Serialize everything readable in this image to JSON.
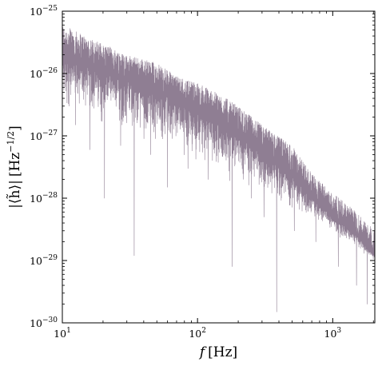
{
  "chart_data": {
    "type": "line",
    "title": "",
    "xlabel": "f [Hz]",
    "ylabel": "|⟨h̃⟩| [Hz^-1/2]",
    "xlabel_parts": {
      "var": "f",
      "unit": "[Hz]"
    },
    "ylabel_parts": {
      "var": "|⟨h̃⟩|",
      "unit_base": "[Hz",
      "unit_exp": "−1/2",
      "unit_close": "]"
    },
    "xscale": "log",
    "yscale": "log",
    "xlim": [
      10,
      2048
    ],
    "ylim": [
      1e-30,
      1e-25
    ],
    "grid": false,
    "legend": "none",
    "color": "#8f7e93",
    "x_ticks": [
      {
        "value": 10,
        "base": "10",
        "exp": "1"
      },
      {
        "value": 100,
        "base": "10",
        "exp": "2"
      },
      {
        "value": 1000,
        "base": "10",
        "exp": "3"
      }
    ],
    "y_ticks": [
      {
        "value": 1e-30,
        "base": "10",
        "exp": "−30"
      },
      {
        "value": 1e-29,
        "base": "10",
        "exp": "−29"
      },
      {
        "value": 1e-28,
        "base": "10",
        "exp": "−28"
      },
      {
        "value": 1e-27,
        "base": "10",
        "exp": "−27"
      },
      {
        "value": 1e-26,
        "base": "10",
        "exp": "−26"
      },
      {
        "value": 1e-25,
        "base": "10",
        "exp": "−25"
      }
    ],
    "series": [
      {
        "upper_envelope": {
          "x": [
            10,
            12,
            15,
            20,
            30,
            50,
            70,
            100,
            150,
            200,
            300,
            500,
            700,
            1000,
            1500,
            2048
          ],
          "y": [
            6e-26,
            5e-26,
            4e-26,
            3e-26,
            2e-26,
            1.5e-26,
            9e-27,
            7e-27,
            4.5e-27,
            3e-27,
            1.5e-27,
            7e-28,
            2.5e-28,
            1.2e-28,
            6e-29,
            3e-29
          ]
        },
        "typical_level": {
          "x": [
            10,
            15,
            20,
            30,
            50,
            100,
            150,
            200,
            300,
            500,
            700,
            1000,
            1500,
            2048
          ],
          "y": [
            1.8e-26,
            1.3e-26,
            1e-26,
            8e-27,
            5e-27,
            2.5e-27,
            1.5e-27,
            1e-27,
            5e-28,
            2.2e-28,
            1e-28,
            5e-29,
            2.5e-29,
            1.2e-29
          ]
        },
        "lower_band": {
          "x": [
            10,
            20,
            50,
            100,
            200,
            500,
            1000,
            2048
          ],
          "y": [
            2e-27,
            1.2e-27,
            6e-28,
            3e-28,
            1.5e-28,
            6e-29,
            2.5e-29,
            1e-29
          ]
        },
        "dips": [
          {
            "x": 12.5,
            "y": 1.5e-27
          },
          {
            "x": 16,
            "y": 6e-28
          },
          {
            "x": 20.5,
            "y": 1e-28
          },
          {
            "x": 27,
            "y": 7e-28
          },
          {
            "x": 34,
            "y": 1.2e-29
          },
          {
            "x": 45,
            "y": 5e-28
          },
          {
            "x": 60,
            "y": 1.5e-28
          },
          {
            "x": 85,
            "y": 3e-28
          },
          {
            "x": 120,
            "y": 2e-28
          },
          {
            "x": 180,
            "y": 8e-30
          },
          {
            "x": 250,
            "y": 1e-28
          },
          {
            "x": 310,
            "y": 5e-29
          },
          {
            "x": 385,
            "y": 1.5e-30
          },
          {
            "x": 520,
            "y": 3e-29
          },
          {
            "x": 750,
            "y": 2e-29
          },
          {
            "x": 1100,
            "y": 8e-30
          },
          {
            "x": 1500,
            "y": 4e-30
          },
          {
            "x": 1800,
            "y": 2e-30
          }
        ]
      }
    ]
  }
}
